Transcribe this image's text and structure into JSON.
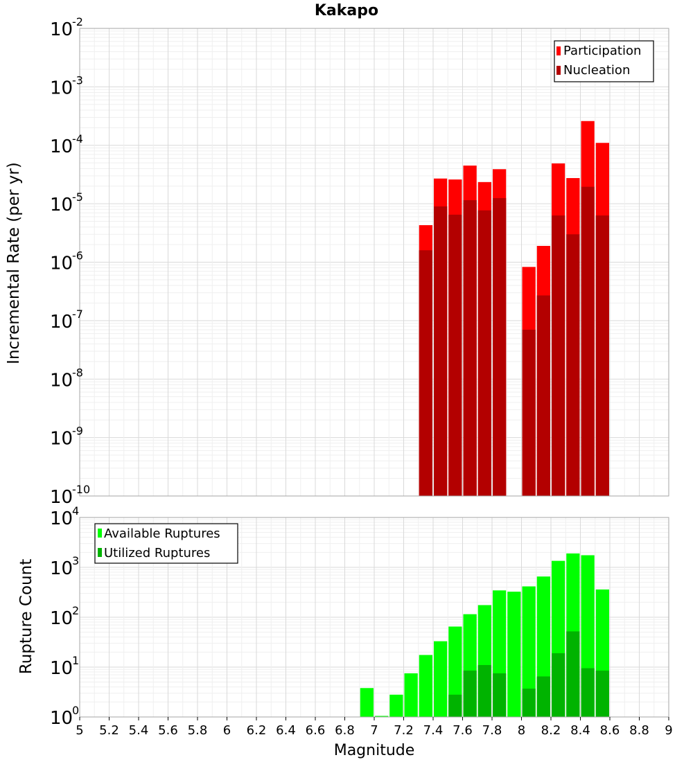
{
  "chart_data": [
    {
      "type": "bar",
      "title": "Kakapo",
      "xlabel": "",
      "ylabel": "Incremental Rate (per yr)",
      "yscale": "log",
      "xlim": [
        5,
        9
      ],
      "ylim_exp": [
        -10,
        -2
      ],
      "grid": true,
      "legend_position": "top-right",
      "bin_width": 0.1,
      "series": [
        {
          "name": "Participation",
          "color": "#ff0000",
          "x": [
            7.35,
            7.45,
            7.55,
            7.65,
            7.75,
            7.85,
            8.05,
            8.15,
            8.25,
            8.35,
            8.45,
            8.55
          ],
          "values": [
            4.3e-06,
            2.7e-05,
            2.6e-05,
            4.5e-05,
            2.35e-05,
            3.9e-05,
            8.3e-07,
            1.9e-06,
            4.9e-05,
            2.75e-05,
            0.00026,
            0.00011
          ]
        },
        {
          "name": "Nucleation",
          "color": "#b30000",
          "x": [
            7.35,
            7.45,
            7.55,
            7.65,
            7.75,
            7.85,
            8.05,
            8.15,
            8.25,
            8.35,
            8.45,
            8.55
          ],
          "values": [
            1.6e-06,
            9e-06,
            6.5e-06,
            1.15e-05,
            7.7e-06,
            1.25e-05,
            7e-08,
            2.7e-07,
            6.3e-06,
            3e-06,
            1.95e-05,
            6.3e-06
          ]
        }
      ]
    },
    {
      "type": "bar",
      "title": "",
      "xlabel": "Magnitude",
      "ylabel": "Rupture Count",
      "yscale": "log",
      "xlim": [
        5,
        9
      ],
      "ylim_exp": [
        0,
        4
      ],
      "grid": true,
      "legend_position": "top-left",
      "bin_width": 0.1,
      "series": [
        {
          "name": "Available Ruptures",
          "color": "#00ff00",
          "x": [
            6.95,
            7.05,
            7.15,
            7.25,
            7.35,
            7.45,
            7.55,
            7.65,
            7.75,
            7.85,
            7.95,
            8.05,
            8.15,
            8.25,
            8.35,
            8.45,
            8.55
          ],
          "values": [
            3.8,
            1.05,
            2.8,
            7.5,
            17.5,
            33,
            65,
            115,
            175,
            345,
            325,
            415,
            655,
            1350,
            1900,
            1750,
            360
          ]
        },
        {
          "name": "Utilized Ruptures",
          "color": "#00b300",
          "x": [
            7.35,
            7.45,
            7.55,
            7.65,
            7.75,
            7.85,
            8.05,
            8.15,
            8.25,
            8.35,
            8.45,
            8.55
          ],
          "values": [
            1.02,
            1.02,
            2.8,
            8.5,
            11,
            7.5,
            3.7,
            6.5,
            19,
            52,
            9.5,
            8.5
          ]
        }
      ]
    }
  ],
  "x_ticks": [
    "5",
    "5.2",
    "5.4",
    "5.6",
    "5.8",
    "6",
    "6.2",
    "6.4",
    "6.6",
    "6.8",
    "7",
    "7.2",
    "7.4",
    "7.6",
    "7.8",
    "8",
    "8.2",
    "8.4",
    "8.6",
    "8.8",
    "9"
  ],
  "colors": {
    "plot_border": "#a6a6a6",
    "grid_major": "#d9d9d9",
    "grid_minor": "#efefef"
  }
}
